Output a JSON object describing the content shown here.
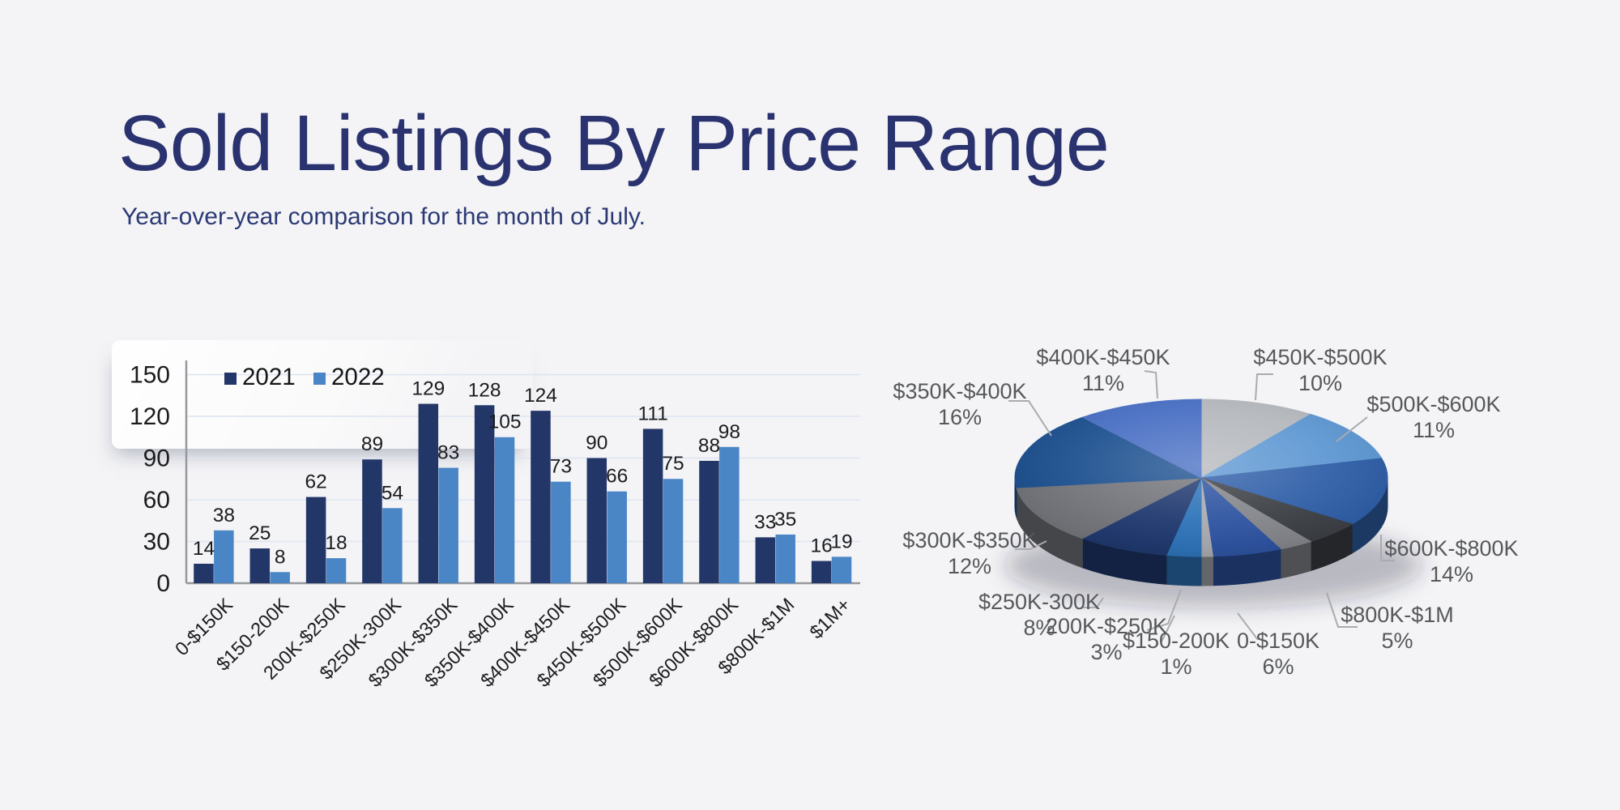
{
  "page": {
    "title": "Sold Listings By Price Range",
    "subtitle": "Year-over-year comparison for the month of July."
  },
  "colors": {
    "background": "#f4f4f6",
    "title_text": "#2a336f",
    "bar_2021": "#233668",
    "bar_2022": "#4a86c6",
    "gridline": "#dde3f1",
    "axis": "#96989c",
    "chart_text": "#1b1c1e",
    "pie_label_text": "#56585b",
    "pie_leader_line": "#a9abae"
  },
  "chart_data": [
    {
      "type": "bar",
      "title": "",
      "xlabel": "",
      "ylabel": "",
      "grid": "horizontal",
      "legend_position": "top-left-inside",
      "y_ticks": [
        0,
        30,
        60,
        90,
        120,
        150
      ],
      "ylim": [
        0,
        160
      ],
      "categories": [
        "0-$150K",
        "$150-200K",
        "200K-$250K",
        "$250K-300K",
        "$300K-$350K",
        "$350K-$400K",
        "$400K-$450K",
        "$450K-$500K",
        "$500K-$600K",
        "$600K-$800K",
        "$800K-$1M",
        "$1M+"
      ],
      "series": [
        {
          "name": "2021",
          "color": "#233668",
          "values": [
            14,
            25,
            62,
            89,
            129,
            128,
            124,
            90,
            111,
            88,
            33,
            16
          ]
        },
        {
          "name": "2022",
          "color": "#4a86c6",
          "values": [
            38,
            8,
            18,
            54,
            83,
            105,
            73,
            66,
            75,
            98,
            35,
            19
          ]
        }
      ]
    },
    {
      "type": "pie",
      "style": "3d",
      "start_angle_deg_from_top": 0,
      "direction": "clockwise",
      "slices": [
        {
          "label": "$450K-$500K",
          "pct": 10,
          "pct_label": "10%",
          "color": "#b5b8bd"
        },
        {
          "label": "$500K-$600K",
          "pct": 11,
          "pct_label": "11%",
          "color": "#5f98d3"
        },
        {
          "label": "$600K-$800K",
          "pct": 14,
          "pct_label": "14%",
          "color": "#305fa8"
        },
        {
          "label": "$800K-$1M",
          "pct": 5,
          "pct_label": "5%",
          "color": "#3d4046"
        },
        {
          "label": "",
          "pct": 3,
          "pct_label": "",
          "color": "#84868b"
        },
        {
          "label": "0-$150K",
          "pct": 6,
          "pct_label": "6%",
          "color": "#2e54a1"
        },
        {
          "label": "$150-200K",
          "pct": 1,
          "pct_label": "1%",
          "color": "#a9abb0"
        },
        {
          "label": "200K-$250K",
          "pct": 3,
          "pct_label": "3%",
          "color": "#2e74b9"
        },
        {
          "label": "$250K-300K",
          "pct": 8,
          "pct_label": "8%",
          "color": "#20396f"
        },
        {
          "label": "$300K-$350K",
          "pct": 12,
          "pct_label": "12%",
          "color": "#73757b"
        },
        {
          "label": "$350K-$400K",
          "pct": 16,
          "pct_label": "16%",
          "color": "#1e5190"
        },
        {
          "label": "$400K-$450K",
          "pct": 11,
          "pct_label": "11%",
          "color": "#4a70c4"
        }
      ]
    }
  ]
}
